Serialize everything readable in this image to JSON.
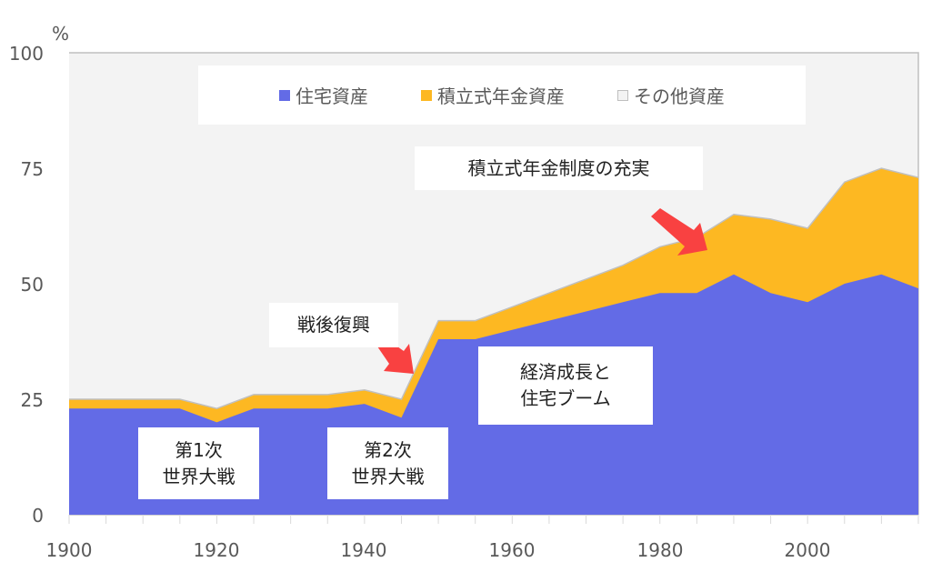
{
  "chart_data": {
    "type": "area",
    "stacked": true,
    "title": "",
    "xlabel": "",
    "ylabel": "%",
    "ylim": [
      0,
      100
    ],
    "xlim": [
      1900,
      2015
    ],
    "y_ticks": [
      "0",
      "25",
      "50",
      "75",
      "100"
    ],
    "x_ticks": [
      "1900",
      "1920",
      "1940",
      "1960",
      "1980",
      "2000"
    ],
    "x": [
      1900,
      1905,
      1910,
      1915,
      1920,
      1925,
      1930,
      1935,
      1940,
      1945,
      1950,
      1955,
      1960,
      1965,
      1970,
      1975,
      1980,
      1985,
      1990,
      1995,
      2000,
      2005,
      2010,
      2015
    ],
    "series": [
      {
        "name": "住宅資産",
        "color": "#636be6",
        "values": [
          23,
          23,
          23,
          23,
          20,
          23,
          23,
          23,
          24,
          21,
          38,
          38,
          40,
          42,
          44,
          46,
          48,
          48,
          52,
          48,
          46,
          50,
          52,
          49
        ]
      },
      {
        "name": "積立式年金資産",
        "color": "#fdb822",
        "values": [
          2,
          2,
          2,
          2,
          3,
          3,
          3,
          3,
          3,
          4,
          4,
          4,
          5,
          6,
          7,
          8,
          10,
          12,
          13,
          16,
          16,
          22,
          23,
          24
        ]
      },
      {
        "name": "その他資産",
        "color": "#f3f3f3",
        "values": [
          75,
          75,
          75,
          75,
          77,
          74,
          74,
          74,
          73,
          75,
          58,
          58,
          55,
          52,
          49,
          46,
          42,
          40,
          35,
          36,
          38,
          28,
          25,
          27
        ]
      }
    ],
    "legend": {
      "position": "top-inside",
      "entries": [
        "住宅資産",
        "積立式年金資産",
        "その他資産"
      ]
    },
    "annotations": [
      {
        "text": "積立式年金制度の充実",
        "arrow": true
      },
      {
        "text": "戦後復興",
        "arrow": true
      },
      {
        "text": "第1次\n世界大戦",
        "arrow": false
      },
      {
        "text": "第2次\n世界大戦",
        "arrow": false
      },
      {
        "text": "経済成長と\n住宅ブーム",
        "arrow": false
      }
    ],
    "grid": false
  },
  "axis": {
    "unit": "%",
    "y_labels": [
      "100",
      "75",
      "50",
      "25",
      "0"
    ],
    "x_labels": [
      "1900",
      "1920",
      "1940",
      "1960",
      "1980",
      "2000"
    ]
  },
  "legend": {
    "housing": "住宅資産",
    "pension": "積立式年金資産",
    "other": "その他資産"
  },
  "annotations": {
    "pension_growth": "積立式年金制度の充実",
    "postwar": "戦後復興",
    "ww1_line1": "第1次",
    "ww1_line2": "世界大戦",
    "ww2_line1": "第2次",
    "ww2_line2": "世界大戦",
    "boom_line1": "経済成長と",
    "boom_line2": "住宅ブーム"
  },
  "colors": {
    "housing": "#636be6",
    "pension": "#fdb822",
    "other": "#f3f3f3",
    "arrow": "#f94141",
    "axis": "#bfbfbf"
  }
}
